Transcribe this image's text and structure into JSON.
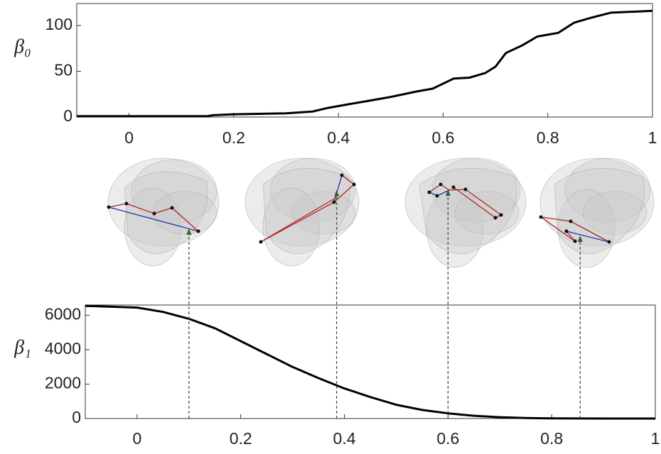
{
  "chart_data": [
    {
      "type": "line",
      "y_label": "β₀",
      "color": "#000000",
      "x": [
        -0.1,
        0.15,
        0.16,
        0.2,
        0.3,
        0.35,
        0.38,
        0.42,
        0.45,
        0.5,
        0.55,
        0.58,
        0.62,
        0.65,
        0.68,
        0.7,
        0.72,
        0.75,
        0.78,
        0.82,
        0.85,
        0.88,
        0.92,
        1
      ],
      "values": [
        1,
        1,
        2,
        3,
        4,
        6,
        10,
        14,
        17,
        22,
        28,
        31,
        42,
        43,
        48,
        55,
        70,
        78,
        88,
        92,
        103,
        108,
        114,
        116
      ],
      "xlim": [
        -0.1,
        1
      ],
      "xticks": [
        0,
        0.2,
        0.4,
        0.6,
        0.8,
        1
      ],
      "ylim": [
        0,
        124
      ],
      "yticks": [
        0,
        50,
        100
      ]
    },
    {
      "type": "line",
      "y_label": "β₁",
      "color": "#000000",
      "x": [
        -0.1,
        0,
        0.05,
        0.1,
        0.15,
        0.2,
        0.25,
        0.3,
        0.35,
        0.4,
        0.45,
        0.5,
        0.55,
        0.6,
        0.65,
        0.7,
        0.75,
        0.8,
        0.9,
        1
      ],
      "values": [
        6550,
        6450,
        6200,
        5800,
        5250,
        4500,
        3750,
        3000,
        2350,
        1750,
        1250,
        800,
        500,
        300,
        160,
        80,
        35,
        10,
        0,
        0
      ],
      "markers": [
        0.1,
        0.385,
        0.6,
        0.855
      ],
      "marker_color": "#3a5f2a",
      "xlim": [
        -0.1,
        1
      ],
      "xticks": [
        0,
        0.2,
        0.4,
        0.6,
        0.8,
        1
      ],
      "ylim": [
        0,
        6600
      ],
      "yticks": [
        0,
        2000,
        4000,
        6000
      ]
    }
  ]
}
